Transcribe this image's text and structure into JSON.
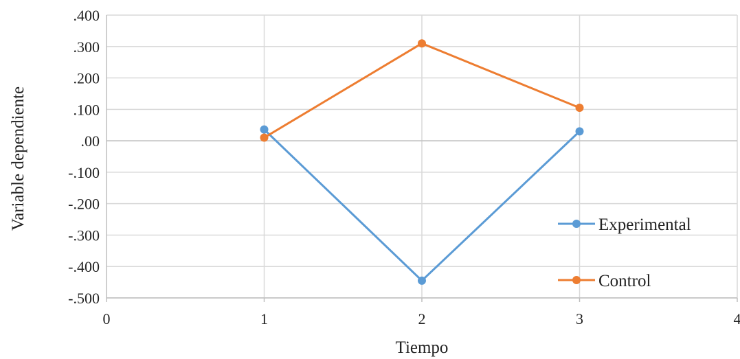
{
  "chart_data": {
    "type": "scatter",
    "xlabel": "Tiempo",
    "ylabel": "Variable dependiente",
    "xlim": [
      0,
      4
    ],
    "ylim": [
      -0.5,
      0.4
    ],
    "x_ticks": [
      "0",
      "1",
      "2",
      "3",
      "4"
    ],
    "y_ticks": [
      ".400",
      ".300",
      ".200",
      ".100",
      ".00",
      "-.100",
      "-.200",
      "-.300",
      "-.400",
      "-.500"
    ],
    "grid": true,
    "legend_position": "right",
    "series": [
      {
        "name": "Experimental",
        "color": "#5b9bd5",
        "x": [
          1,
          2,
          3
        ],
        "y": [
          0.036,
          -0.445,
          0.03
        ]
      },
      {
        "name": "Control",
        "color": "#ed7d31",
        "x": [
          1,
          2,
          3
        ],
        "y": [
          0.01,
          0.31,
          0.105
        ]
      }
    ]
  }
}
